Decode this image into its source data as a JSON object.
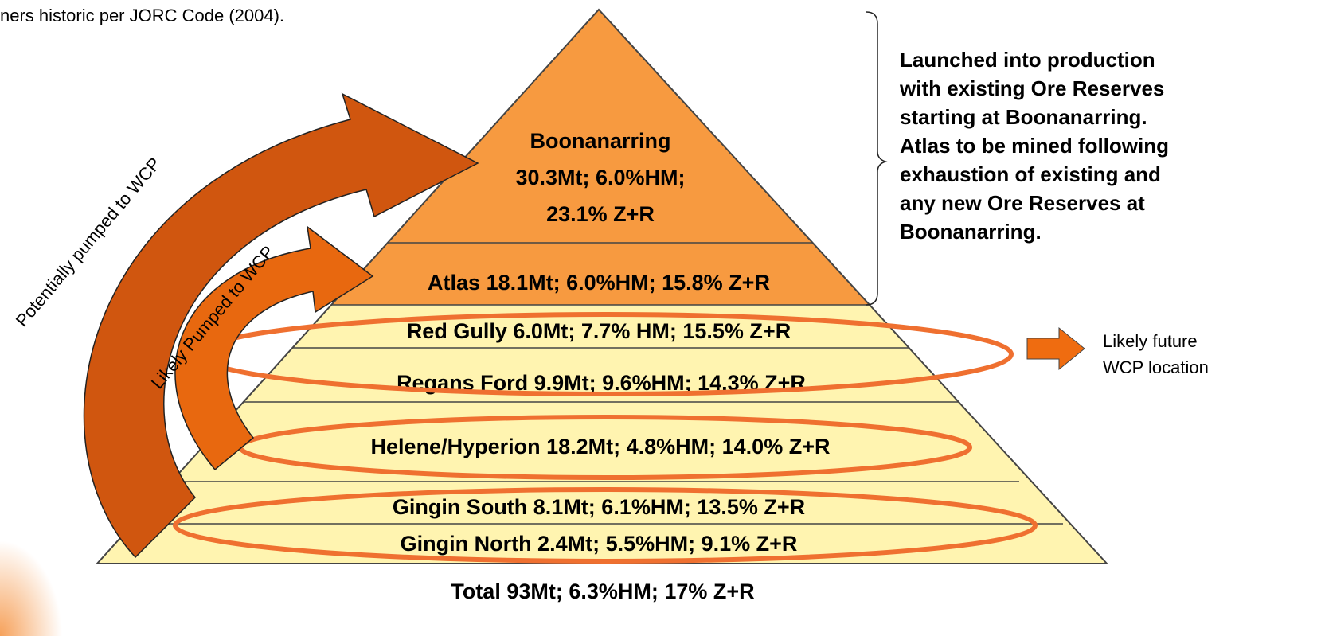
{
  "header": {
    "note": "ners historic per JORC Code (2004)."
  },
  "pyramid": {
    "layers": [
      {
        "lines": [
          "Boonanarring",
          "30.3Mt; 6.0%HM;",
          "23.1% Z+R"
        ]
      },
      {
        "lines": [
          "Atlas 18.1Mt; 6.0%HM; 15.8% Z+R"
        ]
      },
      {
        "lines": [
          "Red Gully  6.0Mt; 7.7% HM; 15.5% Z+R"
        ]
      },
      {
        "lines": [
          "Regans Ford  9.9Mt; 9.6%HM; 14.3% Z+R"
        ]
      },
      {
        "lines": [
          "Helene/Hyperion  18.2Mt; 4.8%HM; 14.0% Z+R"
        ]
      },
      {
        "lines": [
          "Gingin South   8.1Mt; 6.1%HM; 13.5% Z+R"
        ]
      },
      {
        "lines": [
          "Gingin North   2.4Mt; 5.5%HM; 9.1% Z+R"
        ]
      }
    ],
    "total": "Total  93Mt; 6.3%HM; 17% Z+R"
  },
  "arrows": {
    "outer": "Potentially pumped to WCP",
    "inner": "Likely Pumped to WCP"
  },
  "callout": {
    "lines": [
      "Launched into production",
      "with existing Ore Reserves",
      "starting at Boonanarring.",
      "Atlas to be mined following",
      "exhaustion of existing and",
      "any new Ore Reserves at",
      "Boonanarring."
    ]
  },
  "future": {
    "lines": [
      "Likely future",
      "WCP location"
    ]
  }
}
